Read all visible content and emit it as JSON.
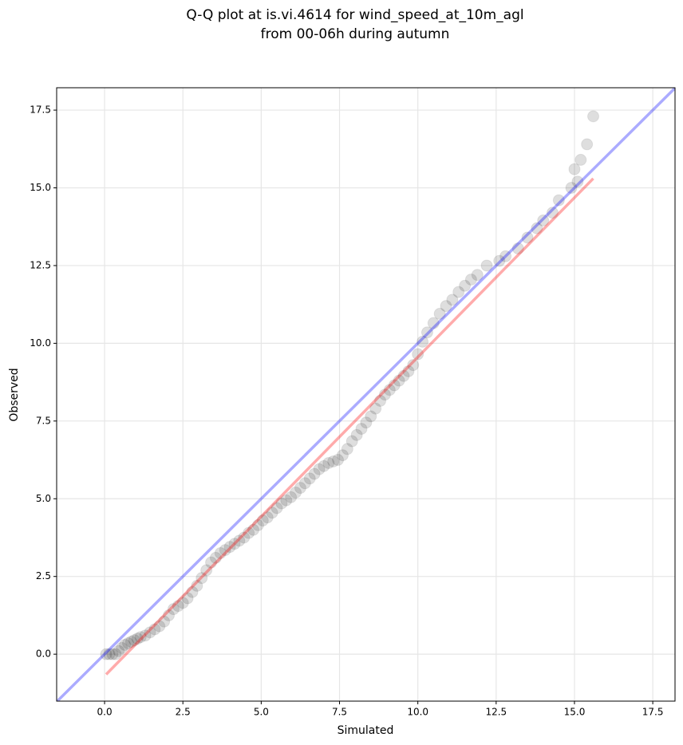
{
  "chart_data": {
    "type": "scatter",
    "title": [
      "Q-Q plot at is.vi.4614 for wind_speed_at_10m_agl",
      "from 00-06h during autumn"
    ],
    "x_label": "Simulated",
    "y_label": "Observed",
    "xlim": [
      -1.53,
      18.21
    ],
    "ylim": [
      -1.51,
      18.22
    ],
    "xticks": [
      {
        "value": 0,
        "label": "0.0"
      },
      2.5,
      {
        "value": 5,
        "label": "5.0"
      },
      7.5,
      {
        "value": 10,
        "label": "10.0"
      },
      12.5,
      {
        "value": 15,
        "label": "15.0"
      },
      17.5
    ],
    "yticks": [
      {
        "value": 0,
        "label": "0.0"
      },
      2.5,
      {
        "value": 5,
        "label": "5.0"
      },
      7.5,
      {
        "value": 10,
        "label": "10.0"
      },
      12.5,
      {
        "value": 15,
        "label": "15.0"
      },
      17.5
    ],
    "grid": true,
    "color": "#000000",
    "x": [
      0.05,
      0.15,
      0.25,
      0.35,
      0.45,
      0.55,
      0.65,
      0.75,
      0.85,
      0.95,
      1.05,
      1.15,
      1.3,
      1.45,
      1.6,
      1.75,
      1.9,
      2.05,
      2.2,
      2.35,
      2.5,
      2.65,
      2.8,
      2.95,
      3.1,
      3.25,
      3.4,
      3.55,
      3.7,
      3.85,
      4.0,
      4.15,
      4.3,
      4.45,
      4.6,
      4.75,
      4.9,
      5.05,
      5.2,
      5.35,
      5.5,
      5.65,
      5.8,
      5.95,
      6.1,
      6.25,
      6.4,
      6.55,
      6.7,
      6.85,
      7.0,
      7.15,
      7.3,
      7.45,
      7.6,
      7.75,
      7.9,
      8.05,
      8.2,
      8.35,
      8.5,
      8.65,
      8.8,
      8.95,
      9.1,
      9.25,
      9.4,
      9.55,
      9.7,
      9.85,
      10.0,
      10.15,
      10.3,
      10.5,
      10.7,
      10.9,
      11.1,
      11.3,
      11.5,
      11.7,
      11.9,
      12.2,
      12.6,
      12.8,
      13.2,
      13.5,
      13.8,
      14.0,
      14.3,
      14.5,
      14.9,
      15.1,
      15.0,
      15.2,
      15.4,
      15.6
    ],
    "values": [
      0.0,
      0.0,
      0.0,
      0.0,
      0.1,
      0.2,
      0.3,
      0.35,
      0.4,
      0.45,
      0.5,
      0.55,
      0.6,
      0.7,
      0.8,
      0.9,
      1.05,
      1.25,
      1.45,
      1.55,
      1.65,
      1.8,
      2.0,
      2.2,
      2.45,
      2.7,
      2.95,
      3.1,
      3.25,
      3.35,
      3.45,
      3.55,
      3.65,
      3.75,
      3.9,
      4.0,
      4.15,
      4.3,
      4.4,
      4.55,
      4.7,
      4.85,
      4.95,
      5.05,
      5.2,
      5.35,
      5.5,
      5.65,
      5.8,
      5.95,
      6.05,
      6.15,
      6.2,
      6.25,
      6.4,
      6.6,
      6.85,
      7.05,
      7.25,
      7.45,
      7.65,
      7.9,
      8.15,
      8.35,
      8.5,
      8.65,
      8.8,
      8.95,
      9.1,
      9.3,
      9.65,
      10.05,
      10.35,
      10.65,
      10.95,
      11.2,
      11.4,
      11.65,
      11.85,
      12.05,
      12.2,
      12.5,
      12.65,
      12.8,
      13.05,
      13.4,
      13.7,
      13.95,
      14.2,
      14.6,
      15.0,
      15.2,
      15.6,
      15.9,
      16.4,
      17.3
    ],
    "fit_line": {
      "x": [
        0.05,
        15.6
      ],
      "y": [
        -0.65,
        15.3
      ],
      "color": "#ff0000"
    },
    "reference_line": {
      "color": "#0000ff"
    }
  }
}
